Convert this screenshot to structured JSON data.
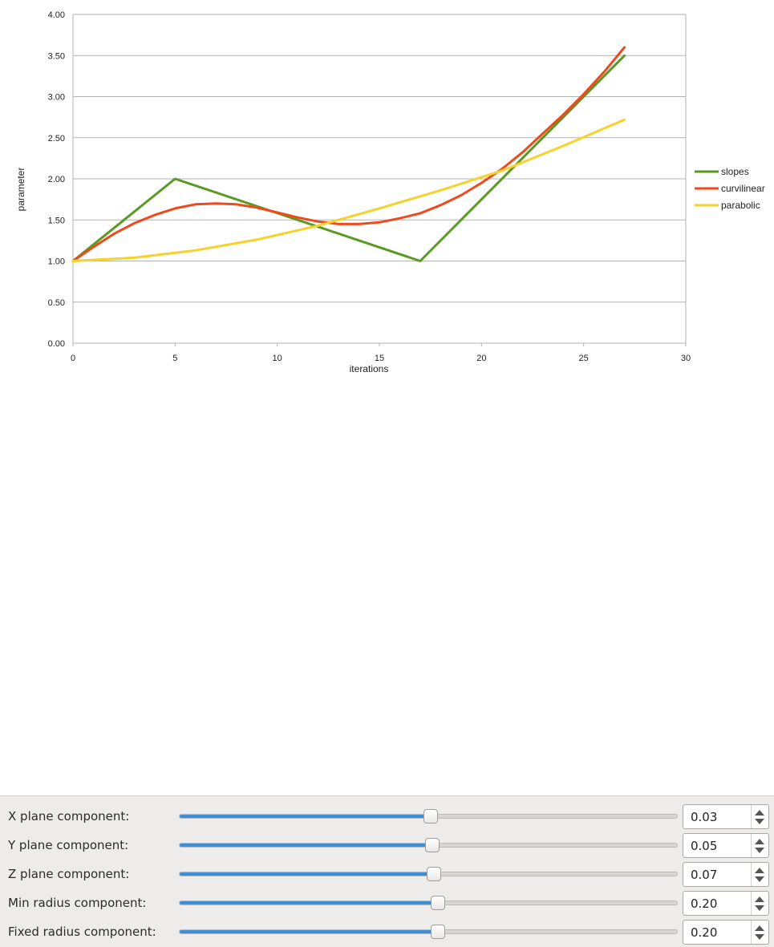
{
  "chart_data": {
    "type": "line",
    "xlabel": "iterations",
    "ylabel": "parameter",
    "xlim": [
      0,
      30
    ],
    "ylim": [
      0,
      4
    ],
    "x_ticks": [
      "0",
      "5",
      "10",
      "15",
      "20",
      "25",
      "30"
    ],
    "y_ticks": [
      "0.00",
      "0.50",
      "1.00",
      "1.50",
      "2.00",
      "2.50",
      "3.00",
      "3.50",
      "4.00"
    ],
    "grid": true,
    "legend_position": "right",
    "series": [
      {
        "name": "slopes",
        "color": "#5a9a23",
        "points": [
          [
            0,
            1.0
          ],
          [
            5,
            2.0
          ],
          [
            17,
            1.0
          ],
          [
            27,
            3.5
          ]
        ]
      },
      {
        "name": "curvilinear",
        "color": "#ee4a1c",
        "points": [
          [
            0,
            1.0
          ],
          [
            1,
            1.17
          ],
          [
            2,
            1.33
          ],
          [
            3,
            1.46
          ],
          [
            4,
            1.56
          ],
          [
            5,
            1.64
          ],
          [
            6,
            1.69
          ],
          [
            7,
            1.7
          ],
          [
            8,
            1.69
          ],
          [
            9,
            1.65
          ],
          [
            10,
            1.59
          ],
          [
            11,
            1.53
          ],
          [
            12,
            1.48
          ],
          [
            13,
            1.45
          ],
          [
            14,
            1.45
          ],
          [
            15,
            1.47
          ],
          [
            16,
            1.52
          ],
          [
            17,
            1.58
          ],
          [
            18,
            1.68
          ],
          [
            19,
            1.8
          ],
          [
            20,
            1.95
          ],
          [
            21,
            2.12
          ],
          [
            22,
            2.32
          ],
          [
            23,
            2.55
          ],
          [
            24,
            2.78
          ],
          [
            25,
            3.03
          ],
          [
            26,
            3.3
          ],
          [
            27,
            3.6
          ]
        ]
      },
      {
        "name": "parabolic",
        "color": "#f7d12c",
        "points": [
          [
            0,
            1.0
          ],
          [
            3,
            1.04
          ],
          [
            6,
            1.13
          ],
          [
            9,
            1.26
          ],
          [
            12,
            1.43
          ],
          [
            15,
            1.64
          ],
          [
            18,
            1.86
          ],
          [
            21,
            2.1
          ],
          [
            24,
            2.4
          ],
          [
            27,
            2.72
          ]
        ]
      }
    ]
  },
  "controls": {
    "rows": [
      {
        "label": "X plane component:",
        "value": "0.03",
        "position": 0.505
      },
      {
        "label": "Y plane component:",
        "value": "0.05",
        "position": 0.508
      },
      {
        "label": "Z plane component:",
        "value": "0.07",
        "position": 0.511
      },
      {
        "label": "Min radius component:",
        "value": "0.20",
        "position": 0.52
      },
      {
        "label": "Fixed radius component:",
        "value": "0.20",
        "position": 0.52
      }
    ]
  }
}
